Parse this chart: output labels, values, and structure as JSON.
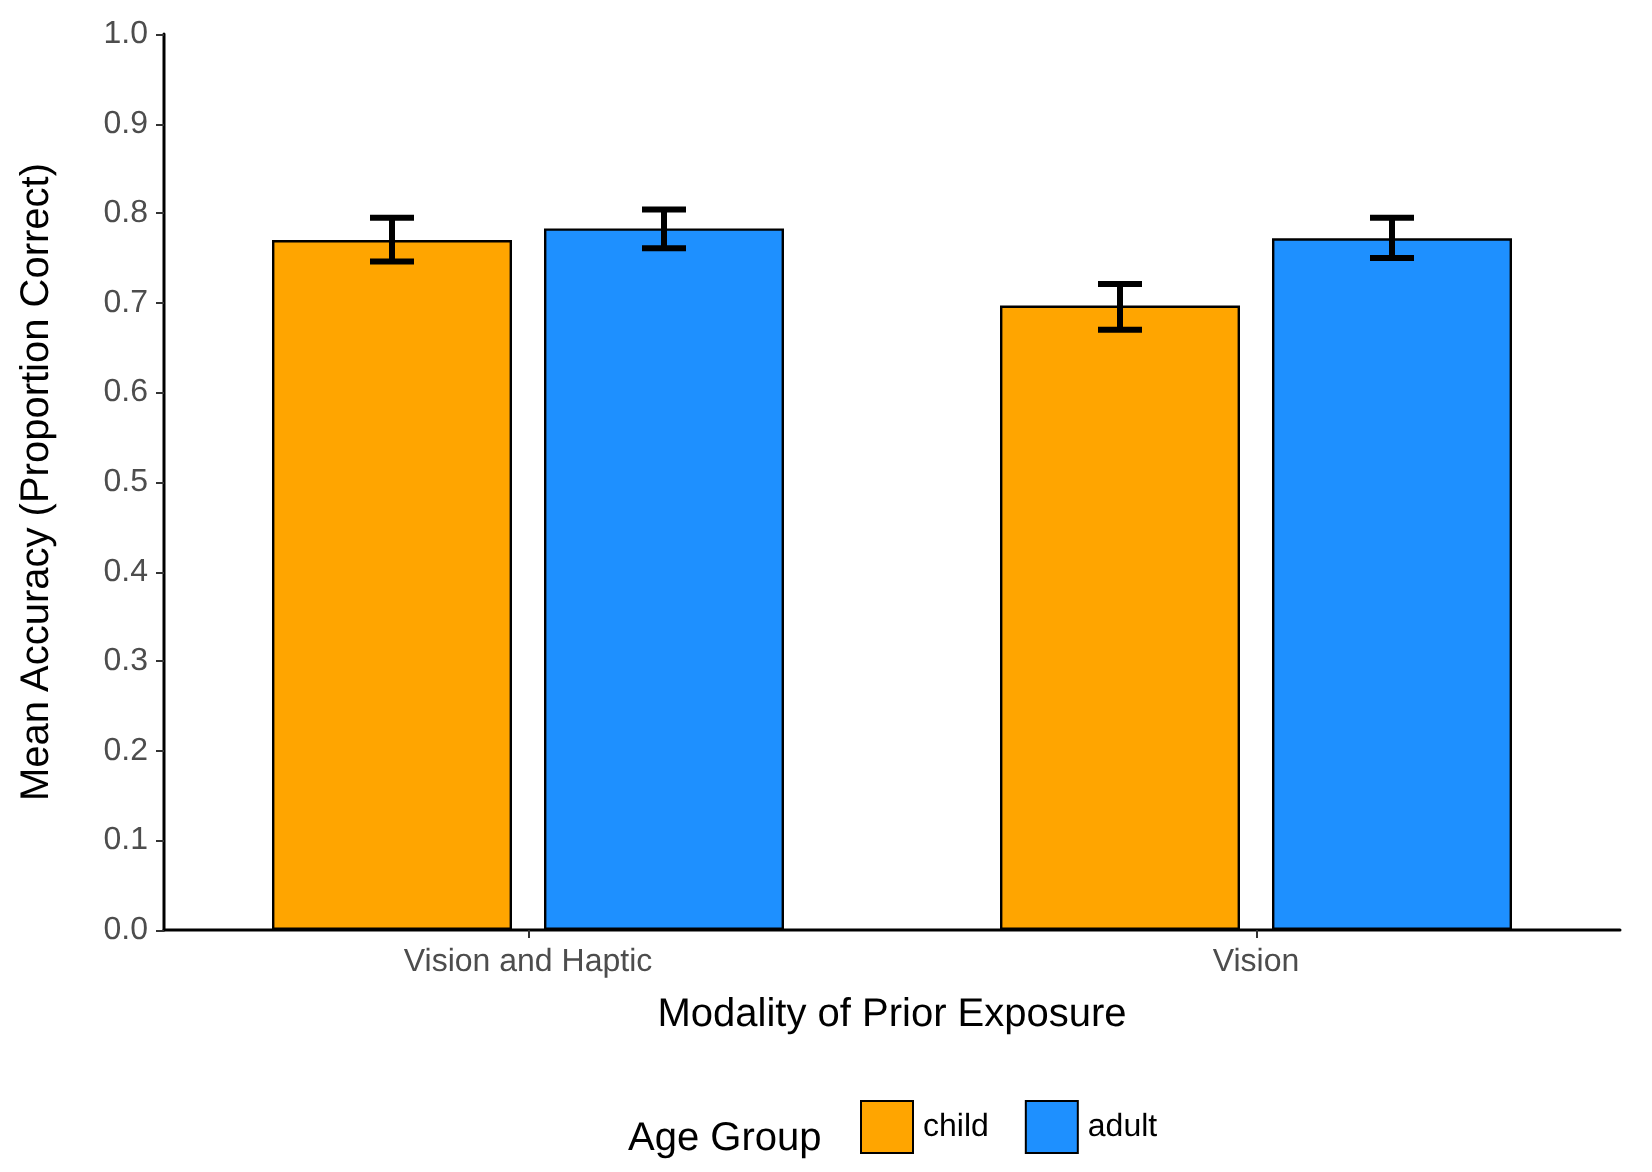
{
  "chart_data": {
    "type": "bar",
    "xlabel": "Modality of Prior Exposure",
    "ylabel": "Mean Accuracy (Proportion Correct)",
    "legend_title": "Age Group",
    "categories": [
      "Vision and Haptic",
      "Vision"
    ],
    "series": [
      {
        "name": "child",
        "color": "#ffa500",
        "values": [
          0.77,
          0.697
        ],
        "errors": [
          [
            0.746,
            0.795
          ],
          [
            0.67,
            0.721
          ]
        ]
      },
      {
        "name": "adult",
        "color": "#1e90ff",
        "values": [
          0.783,
          0.772
        ],
        "errors": [
          [
            0.761,
            0.804
          ],
          [
            0.75,
            0.795
          ]
        ]
      }
    ],
    "ylim": [
      0,
      1
    ],
    "yticks": [
      {
        "value": 0,
        "label": "0.0"
      },
      0.1,
      0.2,
      0.3,
      0.4,
      0.5,
      0.6,
      0.7,
      0.8,
      0.9,
      {
        "value": 1,
        "label": "1.0"
      }
    ],
    "grid": false,
    "legend": "bottom"
  }
}
